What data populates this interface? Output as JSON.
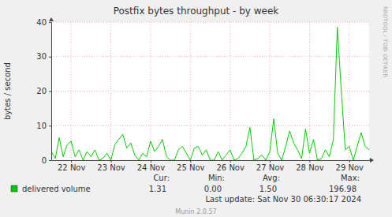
{
  "chart_data": {
    "type": "line",
    "title": "Postfix bytes throughput - by week",
    "y_label": "bytes / second",
    "x": [
      21.5,
      21.6,
      21.7,
      21.8,
      21.9,
      22.0,
      22.1,
      22.2,
      22.3,
      22.4,
      22.5,
      22.6,
      22.7,
      22.8,
      22.9,
      23.0,
      23.1,
      23.2,
      23.3,
      23.4,
      23.5,
      23.6,
      23.7,
      23.8,
      23.9,
      24.0,
      24.1,
      24.2,
      24.3,
      24.4,
      24.5,
      24.6,
      24.7,
      24.8,
      24.9,
      25.0,
      25.1,
      25.2,
      25.3,
      25.4,
      25.5,
      25.6,
      25.7,
      25.8,
      25.9,
      26.0,
      26.1,
      26.2,
      26.3,
      26.4,
      26.5,
      26.6,
      26.7,
      26.8,
      26.9,
      27.0,
      27.1,
      27.2,
      27.3,
      27.4,
      27.5,
      27.6,
      27.7,
      27.8,
      27.9,
      28.0,
      28.1,
      28.2,
      28.3,
      28.4,
      28.5,
      28.6,
      28.7,
      28.8,
      28.9,
      29.0,
      29.1,
      29.2,
      29.3,
      29.4,
      29.5
    ],
    "series": [
      {
        "name": "delivered volume",
        "color": "#00cc00",
        "values": [
          2.5,
          0.5,
          6.5,
          1,
          4.5,
          5.5,
          1,
          3,
          0,
          2.5,
          1,
          3,
          0,
          0.5,
          2,
          0,
          4.5,
          6,
          7.5,
          3.5,
          5,
          1.5,
          0,
          2,
          1,
          5.5,
          2.5,
          4,
          6,
          1,
          0,
          0,
          3,
          4,
          2,
          0,
          3.5,
          4,
          1.5,
          3,
          0,
          0,
          2.5,
          0,
          1.5,
          3,
          0,
          0.5,
          2,
          4,
          9.5,
          0,
          0.5,
          1.5,
          0,
          2.5,
          12,
          2,
          0,
          4,
          8.5,
          5,
          3,
          0.5,
          9,
          2,
          6,
          0,
          0.5,
          3,
          1,
          6,
          38.5,
          20,
          3,
          4,
          0,
          4,
          8,
          4,
          3
        ]
      }
    ],
    "xlim": [
      21.5,
      29.5
    ],
    "xticks": [
      {
        "value": 22,
        "label": "22 Nov"
      },
      {
        "value": 23,
        "label": "23 Nov"
      },
      {
        "value": 24,
        "label": "24 Nov"
      },
      {
        "value": 25,
        "label": "25 Nov"
      },
      {
        "value": 26,
        "label": "26 Nov"
      },
      {
        "value": 27,
        "label": "27 Nov"
      },
      {
        "value": 28,
        "label": "28 Nov"
      },
      {
        "value": 29,
        "label": "29 Nov"
      }
    ],
    "ylim": [
      0,
      40
    ],
    "yticks": [
      0,
      10,
      20,
      30,
      40
    ],
    "grid": true,
    "stats": [
      {
        "label": "Cur:",
        "value": "1.31"
      },
      {
        "label": "Min:",
        "value": "0.00"
      },
      {
        "label": "Avg:",
        "value": "1.50"
      },
      {
        "label": "Max:",
        "value": "196.98"
      }
    ],
    "footer": "Last update: Sat Nov 30 06:30:17 2024",
    "credit": "Munin 2.0.57",
    "watermark": "RRDTOOL / TOBI OETIKER"
  }
}
